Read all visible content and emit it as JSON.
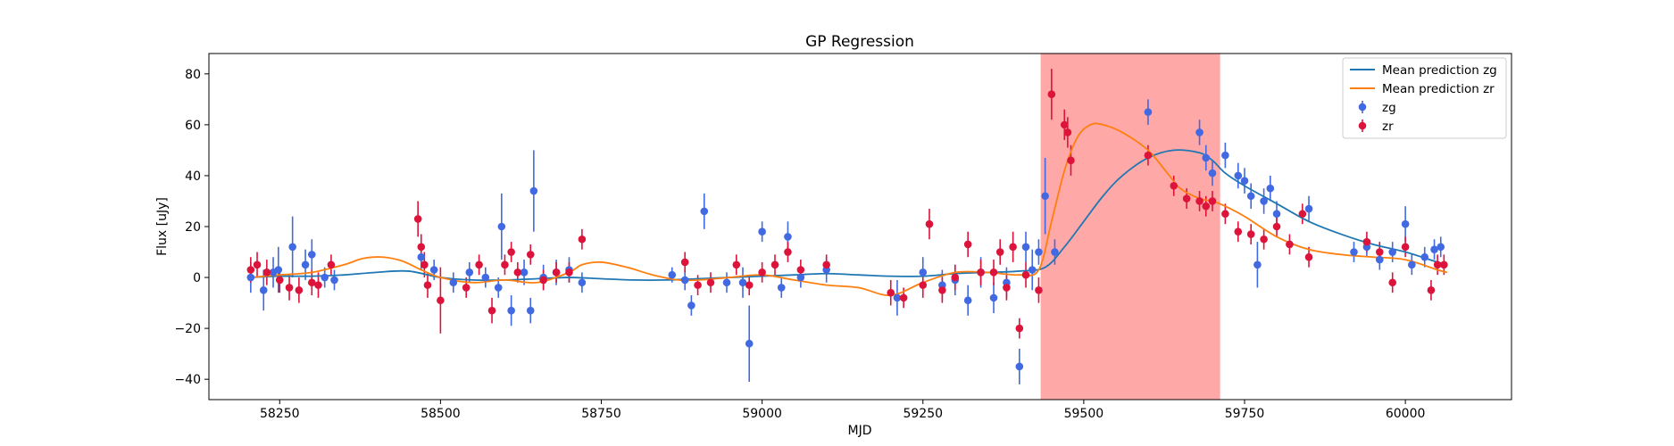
{
  "chart_data": {
    "type": "scatter",
    "title": "GP Regression",
    "xlabel": "MJD",
    "ylabel": "Flux [uJy]",
    "xlim": [
      58140,
      60165
    ],
    "ylim": [
      -48,
      88
    ],
    "xticks": [
      58250,
      58500,
      58750,
      59000,
      59250,
      59500,
      59750,
      60000
    ],
    "yticks": [
      -40,
      -20,
      0,
      20,
      40,
      60,
      80
    ],
    "grid": false,
    "legend_position": "top-right",
    "highlight_span": {
      "x": [
        59433,
        59712
      ],
      "color": "#ff6e6e"
    },
    "series": [
      {
        "name": "Mean prediction zg",
        "kind": "line",
        "color": "#1f77b4",
        "x": [
          58205,
          58250,
          58300,
          58350,
          58400,
          58450,
          58500,
          58550,
          58600,
          58650,
          58700,
          58750,
          58800,
          58850,
          58900,
          58950,
          59000,
          59050,
          59100,
          59150,
          59200,
          59250,
          59300,
          59350,
          59400,
          59440,
          59470,
          59500,
          59530,
          59560,
          59600,
          59640,
          59680,
          59700,
          59720,
          59750,
          59800,
          59850,
          59900,
          59950,
          60000,
          60050,
          60065
        ],
        "y": [
          0,
          0.5,
          0.5,
          1,
          2,
          2.5,
          0,
          -1,
          -1,
          -0.5,
          0,
          -0.5,
          -1,
          -1,
          -0.5,
          0,
          0.5,
          1,
          1.5,
          1,
          0.5,
          0.5,
          1.5,
          2,
          2.5,
          4,
          12,
          22,
          32,
          40,
          47,
          50,
          49,
          46,
          41,
          36,
          29,
          22,
          17,
          13,
          10,
          6,
          5
        ]
      },
      {
        "name": "Mean prediction zr",
        "kind": "line",
        "color": "#ff7f0e",
        "x": [
          58205,
          58250,
          58300,
          58350,
          58380,
          58410,
          58440,
          58470,
          58500,
          58550,
          58600,
          58650,
          58700,
          58720,
          58750,
          58790,
          58830,
          58870,
          58900,
          58950,
          59000,
          59050,
          59100,
          59150,
          59200,
          59250,
          59300,
          59350,
          59400,
          59430,
          59450,
          59470,
          59490,
          59510,
          59530,
          59560,
          59600,
          59630,
          59650,
          59680,
          59700,
          59720,
          59750,
          59800,
          59850,
          59900,
          59950,
          60000,
          60050,
          60065
        ],
        "y": [
          0,
          1,
          2,
          5,
          7.5,
          8,
          6.5,
          3,
          0,
          -2,
          -1,
          -2,
          2,
          5,
          6,
          4,
          1,
          -1,
          -1,
          0,
          1,
          -1,
          -3,
          -4,
          -7,
          -2,
          2,
          2,
          1,
          3,
          22,
          42,
          55,
          60,
          60,
          57,
          50,
          41,
          35,
          31,
          30,
          28,
          24,
          16,
          11,
          9,
          8,
          7,
          3,
          2
        ]
      },
      {
        "name": "zg",
        "kind": "errorbar",
        "color": "#4169e1",
        "x": [
          58205,
          58225,
          58240,
          58248,
          58270,
          58290,
          58300,
          58320,
          58335,
          58470,
          58490,
          58520,
          58545,
          58570,
          58590,
          58595,
          58610,
          58630,
          58640,
          58645,
          58660,
          58680,
          58700,
          58720,
          58860,
          58880,
          58890,
          58910,
          58945,
          58970,
          58980,
          59000,
          59030,
          59040,
          59060,
          59100,
          59210,
          59250,
          59280,
          59300,
          59320,
          59340,
          59360,
          59380,
          59400,
          59410,
          59420,
          59430,
          59440,
          59455,
          59600,
          59680,
          59690,
          59700,
          59720,
          59740,
          59750,
          59760,
          59770,
          59780,
          59790,
          59800,
          59850,
          59920,
          59940,
          59960,
          59980,
          60000,
          60010,
          60030,
          60045,
          60055
        ],
        "y": [
          0,
          -5,
          2,
          3,
          12,
          5,
          9,
          0,
          -1,
          8,
          3,
          -2,
          2,
          0,
          -4,
          20,
          -13,
          2,
          -13,
          34,
          0,
          2,
          3,
          -2,
          1,
          -1,
          -11,
          26,
          -2,
          -2,
          -26,
          18,
          -4,
          16,
          0,
          3,
          -8,
          2,
          -3,
          -1,
          -9,
          2,
          -8,
          -2,
          -35,
          12,
          3,
          10,
          32,
          10,
          65,
          57,
          47,
          41,
          48,
          40,
          38,
          32,
          5,
          30,
          35,
          25,
          27,
          10,
          12,
          7,
          10,
          21,
          5,
          8,
          11,
          12
        ],
        "yerr": [
          6,
          8,
          6,
          9,
          12,
          6,
          6,
          4,
          4,
          5,
          4,
          4,
          4,
          4,
          4,
          13,
          6,
          5,
          5,
          16,
          5,
          5,
          5,
          4,
          3,
          4,
          4,
          7,
          4,
          6,
          15,
          4,
          4,
          6,
          4,
          5,
          7,
          6,
          6,
          6,
          6,
          6,
          6,
          6,
          7,
          6,
          8,
          5,
          15,
          5,
          5,
          5,
          5,
          5,
          5,
          5,
          5,
          5,
          9,
          5,
          5,
          5,
          5,
          4,
          4,
          4,
          4,
          7,
          4,
          4,
          4,
          4
        ]
      },
      {
        "name": "zr",
        "kind": "errorbar",
        "color": "#dc143c",
        "x": [
          58205,
          58215,
          58230,
          58250,
          58265,
          58280,
          58300,
          58310,
          58330,
          58465,
          58470,
          58475,
          58480,
          58500,
          58540,
          58560,
          58580,
          58600,
          58610,
          58620,
          58640,
          58660,
          58680,
          58700,
          58720,
          58880,
          58900,
          58920,
          58960,
          58980,
          59000,
          59020,
          59040,
          59060,
          59100,
          59200,
          59220,
          59250,
          59260,
          59280,
          59300,
          59320,
          59340,
          59360,
          59370,
          59380,
          59390,
          59400,
          59410,
          59430,
          59450,
          59470,
          59475,
          59480,
          59600,
          59640,
          59660,
          59680,
          59690,
          59700,
          59720,
          59740,
          59760,
          59780,
          59800,
          59820,
          59840,
          59850,
          59940,
          59960,
          59980,
          60000,
          60040,
          60050,
          60060
        ],
        "y": [
          3,
          5,
          2,
          -1,
          -4,
          -5,
          -2,
          -3,
          5,
          23,
          12,
          5,
          -3,
          -9,
          -4,
          5,
          -13,
          5,
          10,
          2,
          9,
          -1,
          2,
          2,
          15,
          6,
          -3,
          -2,
          5,
          -3,
          2,
          5,
          10,
          3,
          5,
          -6,
          -8,
          -3,
          21,
          -5,
          0,
          13,
          2,
          2,
          10,
          -4,
          12,
          -20,
          1,
          -5,
          72,
          60,
          57,
          46,
          48,
          36,
          31,
          30,
          28,
          30,
          25,
          18,
          17,
          15,
          20,
          13,
          25,
          8,
          14,
          10,
          -2,
          12,
          -5,
          5,
          5
        ],
        "yerr": [
          5,
          5,
          5,
          5,
          5,
          5,
          5,
          5,
          4,
          7,
          5,
          5,
          5,
          13,
          4,
          4,
          5,
          4,
          4,
          4,
          4,
          4,
          4,
          4,
          4,
          4,
          4,
          4,
          4,
          4,
          4,
          4,
          4,
          4,
          4,
          5,
          4,
          5,
          6,
          5,
          5,
          5,
          5,
          5,
          5,
          5,
          6,
          4,
          5,
          5,
          10,
          6,
          6,
          6,
          4,
          4,
          4,
          4,
          4,
          4,
          4,
          4,
          4,
          4,
          4,
          4,
          4,
          4,
          4,
          4,
          4,
          4,
          4,
          4,
          4
        ]
      }
    ]
  }
}
